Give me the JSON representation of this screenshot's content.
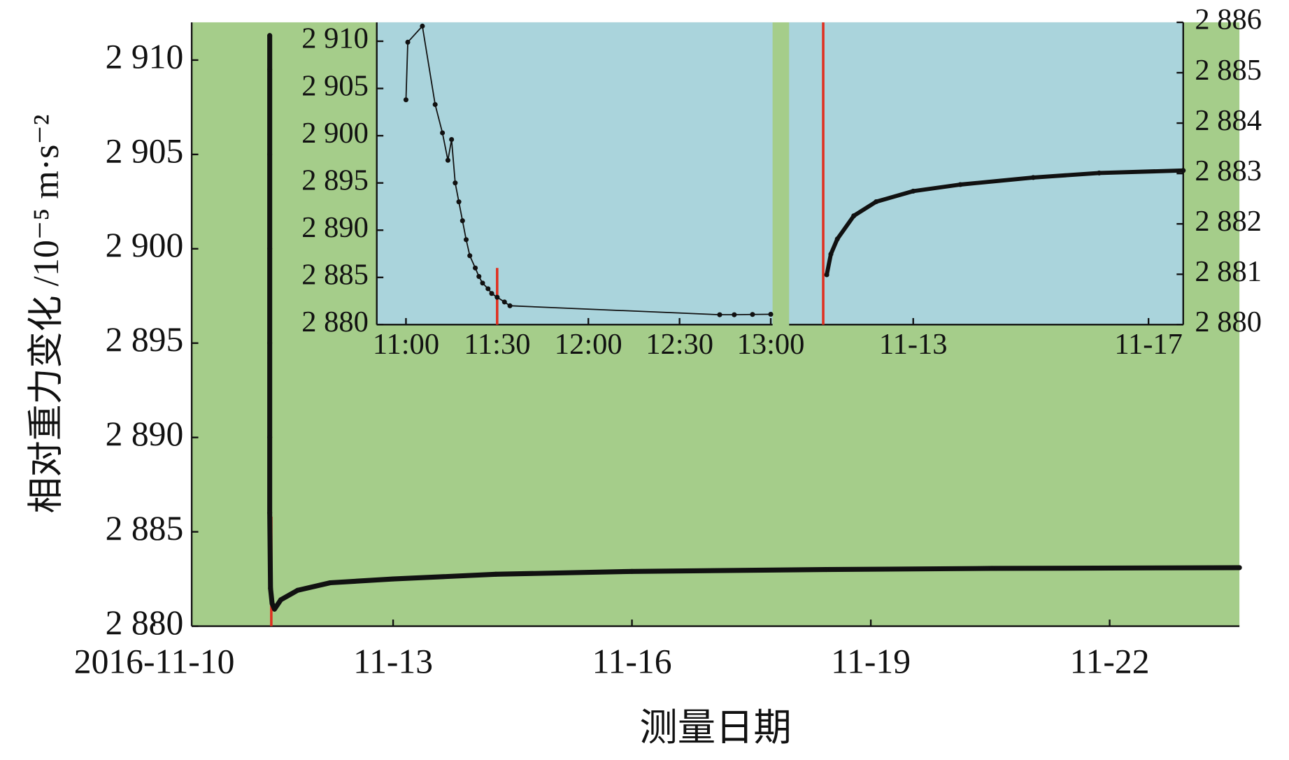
{
  "chart_data": [
    {
      "type": "line",
      "ylabel": "相对重力变化 /10⁻⁵ m·s⁻²",
      "xlabel": "测量日期",
      "background": "#a5cd8a",
      "line_width": 6,
      "xlim": [
        10.47,
        23.63
      ],
      "ylim": [
        2880,
        2912
      ],
      "xticks": [
        {
          "value": 10,
          "label": "2016-11-10"
        },
        {
          "value": 13,
          "label": "11-13"
        },
        {
          "value": 16,
          "label": "11-16"
        },
        {
          "value": 19,
          "label": "11-19"
        },
        {
          "value": 22,
          "label": "11-22"
        }
      ],
      "yticks": [
        {
          "value": 2880,
          "label": "2 880"
        },
        {
          "value": 2885,
          "label": "2 885"
        },
        {
          "value": 2890,
          "label": "2 890"
        },
        {
          "value": 2895,
          "label": "2 895"
        },
        {
          "value": 2900,
          "label": "2 900"
        },
        {
          "value": 2905,
          "label": "2 905"
        },
        {
          "value": 2910,
          "label": "2 910"
        }
      ],
      "series": [
        {
          "color": "#111111",
          "x": [
            11.45,
            11.45,
            11.45,
            11.45,
            11.45,
            11.45,
            11.45,
            11.46,
            11.48,
            11.51,
            11.59,
            11.8,
            12.21,
            13,
            14.29,
            16,
            18.44,
            20.52,
            23.63
          ],
          "values": [
            2911.3,
            2909.5,
            2905,
            2900,
            2895,
            2890,
            2886,
            2882,
            2881.2,
            2880.9,
            2881.4,
            2881.9,
            2882.3,
            2882.5,
            2882.75,
            2882.9,
            2883.0,
            2883.06,
            2883.1
          ]
        }
      ],
      "markers": [
        {
          "color": "#e03020",
          "x": 11.47,
          "values": [
            2880,
            2885.8
          ]
        }
      ]
    },
    {
      "type": "line",
      "background": "#aad4dc",
      "line_width": 1.5,
      "xlim": [
        10.84,
        13.01
      ],
      "ylim": [
        2880,
        2912
      ],
      "xticks": [
        {
          "value": 11,
          "label": "11:00"
        },
        {
          "value": 11.5,
          "label": "11:30"
        },
        {
          "value": 12,
          "label": "12:00"
        },
        {
          "value": 12.5,
          "label": "12:30"
        },
        {
          "value": 13,
          "label": "13:00"
        }
      ],
      "yticks": [
        {
          "value": 2880,
          "label": "2 880"
        },
        {
          "value": 2885,
          "label": "2 885"
        },
        {
          "value": 2890,
          "label": "2 890"
        },
        {
          "value": 2895,
          "label": "2 895"
        },
        {
          "value": 2900,
          "label": "2 900"
        },
        {
          "value": 2905,
          "label": "2 905"
        },
        {
          "value": 2910,
          "label": "2 910"
        }
      ],
      "series": [
        {
          "color": "#111111",
          "x": [
            11.0,
            11.01,
            11.09,
            11.16,
            11.2,
            11.23,
            11.25,
            11.27,
            11.29,
            11.31,
            11.33,
            11.35,
            11.38,
            11.4,
            11.42,
            11.45,
            11.47,
            11.5,
            11.54,
            11.57,
            12.72,
            12.8,
            12.9,
            13.0
          ],
          "values": [
            2903.8,
            2909.9,
            2911.6,
            2903.3,
            2900.3,
            2897.4,
            2899.6,
            2895,
            2893,
            2891,
            2889,
            2887.3,
            2886,
            2885.1,
            2884.4,
            2883.8,
            2883.3,
            2882.9,
            2882.4,
            2882,
            2881.05,
            2881.05,
            2881.08,
            2881.1
          ]
        }
      ],
      "markers": [
        {
          "color": "#e03020",
          "x": 11.5,
          "values": [
            2880,
            2886
          ]
        }
      ]
    },
    {
      "type": "line",
      "background": "#aad4dc",
      "line_width": 5,
      "xlim": [
        10.89,
        17.59
      ],
      "y2lim": [
        2880,
        2886
      ],
      "xticks": [
        {
          "value": 13,
          "label": "11-13"
        },
        {
          "value": 17,
          "label": "11-17"
        }
      ],
      "y2ticks": [
        {
          "value": 2880,
          "label": "2 880"
        },
        {
          "value": 2881,
          "label": "2 881"
        },
        {
          "value": 2882,
          "label": "2 882"
        },
        {
          "value": 2883,
          "label": "2 883"
        },
        {
          "value": 2884,
          "label": "2 884"
        },
        {
          "value": 2885,
          "label": "2 885"
        },
        {
          "value": 2886,
          "label": "2 886"
        }
      ],
      "series": [
        {
          "color": "#111111",
          "axis": "y2",
          "x": [
            11.53,
            11.6,
            11.71,
            11.99,
            12.37,
            13,
            13.8,
            15.04,
            16.16,
            17.59
          ],
          "values": [
            2880.99,
            2881.4,
            2881.7,
            2882.16,
            2882.44,
            2882.65,
            2882.78,
            2882.92,
            2883.01,
            2883.06
          ]
        }
      ],
      "markers": [
        {
          "color": "#e03020",
          "axis": "y2",
          "x": 11.47,
          "values": [
            2880,
            2886
          ]
        }
      ]
    }
  ]
}
